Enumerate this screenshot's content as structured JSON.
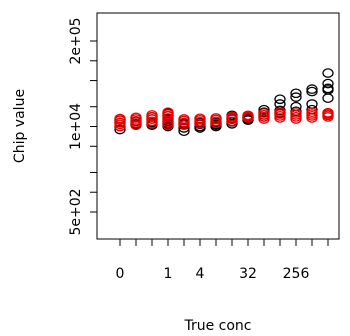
{
  "chart_data": {
    "type": "scatter",
    "title": "",
    "xlabel": "True conc",
    "ylabel": "Chip value",
    "x_scale": "log2 with 0 on the left",
    "y_scale": "log",
    "x_positions": [
      "0",
      "0.25",
      "0.5",
      "1",
      "2",
      "4",
      "8",
      "16",
      "32",
      "64",
      "128",
      "256",
      "512",
      "1024"
    ],
    "x_tick_labels": [
      {
        "at": "0",
        "label": "0"
      },
      {
        "at": "1",
        "label": "1"
      },
      {
        "at": "4",
        "label": "4"
      },
      {
        "at": "32",
        "label": "32"
      },
      {
        "at": "256",
        "label": "256"
      }
    ],
    "y_ticks": [
      {
        "value": 500,
        "label": "5e+02"
      },
      {
        "value": 10000,
        "label": "1e+04"
      },
      {
        "value": 200000,
        "label": "2e+05"
      }
    ],
    "ylim": [
      500,
      200000
    ],
    "marker": "open circle",
    "grid": false,
    "series": [
      {
        "color": "#000000",
        "points": [
          [
            "0",
            9000
          ],
          [
            "0",
            10000
          ],
          [
            "0",
            11500
          ],
          [
            "0",
            12500
          ],
          [
            "0.25",
            10500
          ],
          [
            "0.25",
            11000
          ],
          [
            "0.25",
            12000
          ],
          [
            "0.5",
            10500
          ],
          [
            "0.5",
            11500
          ],
          [
            "0.5",
            13000
          ],
          [
            "0.5",
            14000
          ],
          [
            "1",
            10000
          ],
          [
            "1",
            10500
          ],
          [
            "1",
            11000
          ],
          [
            "1",
            12000
          ],
          [
            "1",
            13000
          ],
          [
            "1",
            14500
          ],
          [
            "1",
            16000
          ],
          [
            "2",
            8500
          ],
          [
            "2",
            9500
          ],
          [
            "2",
            10500
          ],
          [
            "2",
            11000
          ],
          [
            "4",
            9500
          ],
          [
            "4",
            10000
          ],
          [
            "4",
            10800
          ],
          [
            "4",
            11500
          ],
          [
            "8",
            10000
          ],
          [
            "8",
            10500
          ],
          [
            "8",
            11000
          ],
          [
            "8",
            11500
          ],
          [
            "16",
            11000
          ],
          [
            "16",
            11800
          ],
          [
            "16",
            13000
          ],
          [
            "16",
            14800
          ],
          [
            "32",
            12500
          ],
          [
            "32",
            13000
          ],
          [
            "32",
            13500
          ],
          [
            "32",
            14000
          ],
          [
            "64",
            14000
          ],
          [
            "64",
            15000
          ],
          [
            "64",
            16500
          ],
          [
            "64",
            18000
          ],
          [
            "128",
            16000
          ],
          [
            "128",
            17500
          ],
          [
            "128",
            22000
          ],
          [
            "128",
            26000
          ],
          [
            "256",
            17000
          ],
          [
            "256",
            20000
          ],
          [
            "256",
            28000
          ],
          [
            "256",
            32000
          ],
          [
            "512",
            18000
          ],
          [
            "512",
            22000
          ],
          [
            "512",
            34000
          ],
          [
            "512",
            37000
          ],
          [
            "1024",
            27000
          ],
          [
            "1024",
            36000
          ],
          [
            "1024",
            38000
          ],
          [
            "1024",
            45000
          ],
          [
            "1024",
            65000
          ]
        ]
      },
      {
        "color": "#e60000",
        "points": [
          [
            "0",
            10000
          ],
          [
            "0",
            10800
          ],
          [
            "0",
            11500
          ],
          [
            "0",
            12500
          ],
          [
            "0",
            13200
          ],
          [
            "0.25",
            10500
          ],
          [
            "0.25",
            11300
          ],
          [
            "0.25",
            12200
          ],
          [
            "0.25",
            13000
          ],
          [
            "0.25",
            13800
          ],
          [
            "0.5",
            11000
          ],
          [
            "0.5",
            12000
          ],
          [
            "0.5",
            13000
          ],
          [
            "0.5",
            14000
          ],
          [
            "0.5",
            15000
          ],
          [
            "1",
            10500
          ],
          [
            "1",
            11500
          ],
          [
            "1",
            12500
          ],
          [
            "1",
            13500
          ],
          [
            "1",
            14500
          ],
          [
            "1",
            15500
          ],
          [
            "1",
            16500
          ],
          [
            "2",
            10500
          ],
          [
            "2",
            11500
          ],
          [
            "2",
            12300
          ],
          [
            "2",
            13000
          ],
          [
            "4",
            11000
          ],
          [
            "4",
            11800
          ],
          [
            "4",
            12600
          ],
          [
            "4",
            13300
          ],
          [
            "8",
            11200
          ],
          [
            "8",
            12000
          ],
          [
            "8",
            12800
          ],
          [
            "8",
            13500
          ],
          [
            "16",
            12000
          ],
          [
            "16",
            12800
          ],
          [
            "16",
            13600
          ],
          [
            "16",
            14200
          ],
          [
            "32",
            13500
          ],
          [
            "32",
            14200
          ],
          [
            "32",
            14800
          ],
          [
            "64",
            13000
          ],
          [
            "64",
            14000
          ],
          [
            "64",
            15000
          ],
          [
            "64",
            16000
          ],
          [
            "128",
            13500
          ],
          [
            "128",
            14500
          ],
          [
            "128",
            15500
          ],
          [
            "128",
            16500
          ],
          [
            "256",
            13000
          ],
          [
            "256",
            14000
          ],
          [
            "256",
            15000
          ],
          [
            "256",
            16000
          ],
          [
            "512",
            13500
          ],
          [
            "512",
            14500
          ],
          [
            "512",
            15500
          ],
          [
            "512",
            16500
          ],
          [
            "1024",
            14000
          ],
          [
            "1024",
            14800
          ],
          [
            "1024",
            15500
          ],
          [
            "1024",
            16200
          ]
        ]
      }
    ]
  }
}
